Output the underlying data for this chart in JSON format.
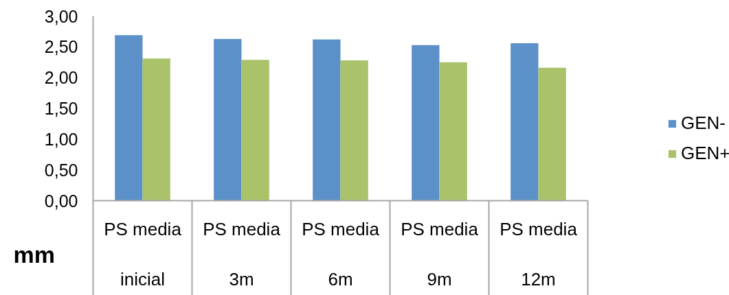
{
  "chart_data": {
    "type": "bar",
    "ylabel": "mm",
    "categories": [
      "PS media\ninicial",
      "PS media\n3m",
      "PS media\n6m",
      "PS media\n9m",
      "PS media\n12m"
    ],
    "series": [
      {
        "name": "GEN-",
        "color": "#5b90c8",
        "values": [
          2.69,
          2.63,
          2.62,
          2.53,
          2.56
        ]
      },
      {
        "name": "GEN+",
        "color": "#aac26a",
        "values": [
          2.31,
          2.29,
          2.28,
          2.25,
          2.16
        ]
      }
    ],
    "ylim": [
      0,
      3
    ],
    "yticks": [
      {
        "value": 0,
        "label": "0,00"
      },
      {
        "value": 0.5,
        "label": "0,50"
      },
      {
        "value": 1,
        "label": "1,00"
      },
      {
        "value": 1.5,
        "label": "1,50"
      },
      {
        "value": 2,
        "label": "2,00"
      },
      {
        "value": 2.5,
        "label": "2,50"
      },
      {
        "value": 3,
        "label": "3,00"
      }
    ],
    "legend": "right"
  }
}
